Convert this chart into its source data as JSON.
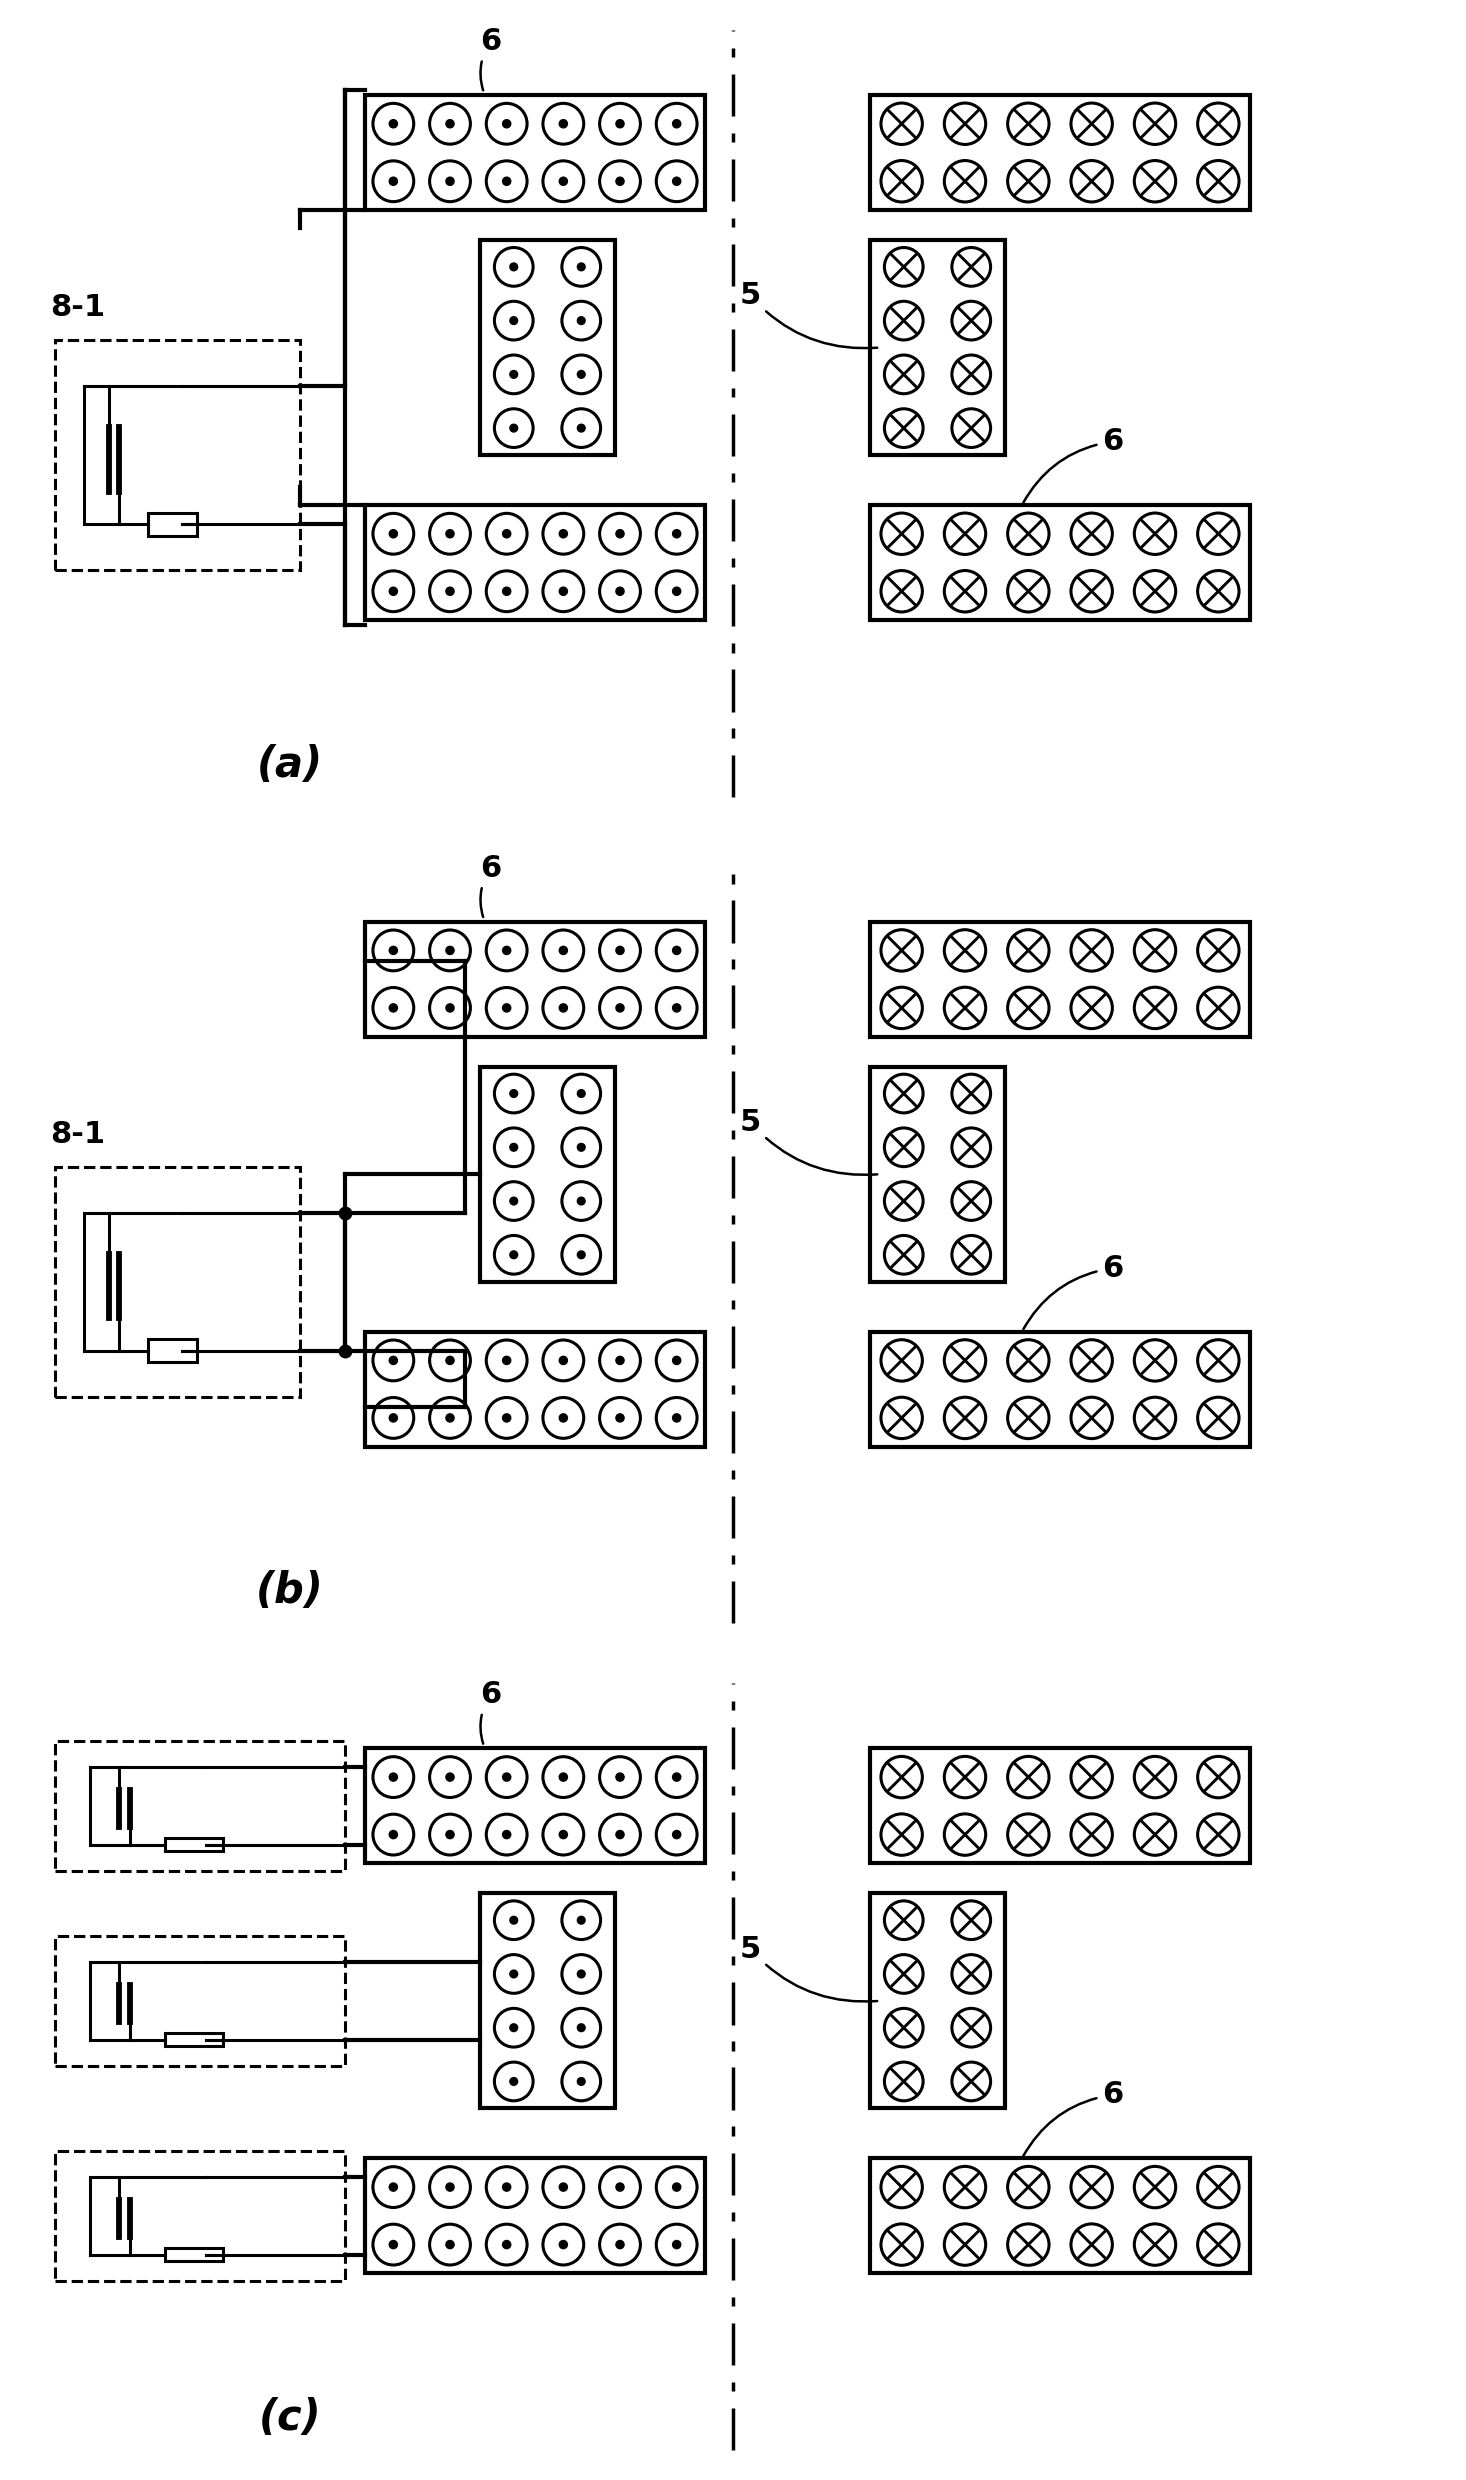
{
  "fig_width": 14.66,
  "fig_height": 24.8,
  "bg_color": "#ffffff",
  "lc": "#000000",
  "lw": 2.2,
  "lw_thick": 3.0,
  "lw_dash": 2.2,
  "panel_labels": [
    "(a)",
    "(b)",
    "(c)"
  ]
}
